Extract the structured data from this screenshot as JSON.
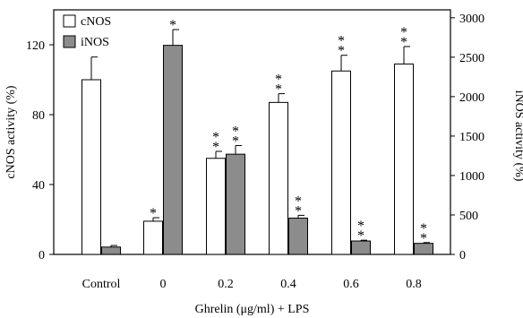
{
  "chart_data": {
    "type": "bar",
    "categories": [
      "Control",
      "0",
      "0.2",
      "0.4",
      "0.6",
      "0.8"
    ],
    "xlabel": "Ghrelin (μg/ml) + LPS",
    "ylabel_left": "cNOS activity (%)",
    "ylabel_right": "iNOS activity (%)",
    "ylim_left": [
      0,
      140
    ],
    "ylim_right": [
      0,
      3100
    ],
    "yticks_left": [
      0,
      40,
      80,
      120
    ],
    "yticks_right": [
      0,
      500,
      1000,
      1500,
      2000,
      2500,
      3000
    ],
    "series": [
      {
        "name": "cNOS",
        "axis": "left",
        "color": "#ffffff",
        "values": [
          100,
          19,
          55,
          87,
          105,
          109
        ],
        "errors": [
          13,
          2,
          4,
          5,
          9,
          10
        ],
        "significance": [
          "",
          "*",
          "**",
          "**",
          "**",
          "**"
        ]
      },
      {
        "name": "iNOS",
        "axis": "right",
        "color": "#8c8c8c",
        "values": [
          93,
          2650,
          1270,
          460,
          170,
          140
        ],
        "errors": [
          20,
          200,
          110,
          35,
          10,
          10
        ],
        "significance": [
          "",
          "*",
          "**",
          "**",
          "**",
          "**"
        ]
      }
    ],
    "legend": [
      "cNOS",
      "iNOS"
    ],
    "legend_position": "top-left"
  }
}
